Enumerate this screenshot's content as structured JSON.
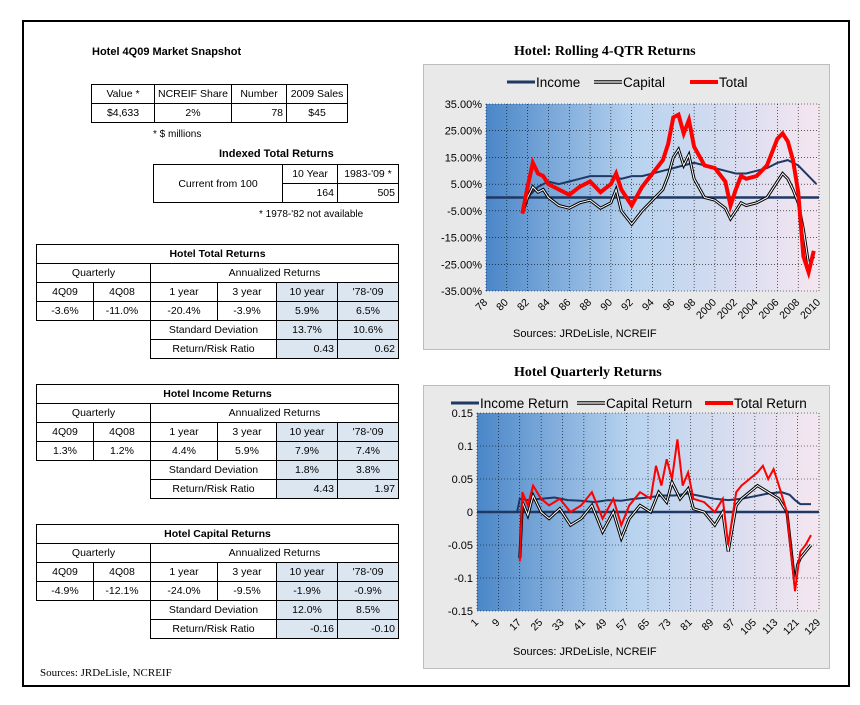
{
  "snapshot": {
    "title": "Hotel 4Q09 Market Snapshot",
    "headers": [
      "Value *",
      "NCREIF Share",
      "Number",
      "2009 Sales"
    ],
    "values": [
      "$4,633",
      "2%",
      "78",
      "$45"
    ],
    "note": "* $ millions"
  },
  "indexed": {
    "title": "Indexed Total Returns",
    "col_headers": [
      "10 Year",
      "1983-'09 *"
    ],
    "row_label": "Current from 100",
    "values": [
      "164",
      "505"
    ],
    "note": "* 1978-'82 not available"
  },
  "tables": [
    {
      "title": "Hotel Total Returns",
      "quarterly_label": "Quarterly",
      "annualized_label": "Annualized Returns",
      "headers": [
        "4Q09",
        "4Q08",
        "1 year",
        "3 year",
        "10 year",
        "'78-'09"
      ],
      "values": [
        "-3.6%",
        "-11.0%",
        "-20.4%",
        "-3.9%",
        "5.9%",
        "6.5%"
      ],
      "sd_label": "Standard Deviation",
      "sd_values": [
        "13.7%",
        "10.6%"
      ],
      "rr_label": "Return/Risk Ratio",
      "rr_values": [
        "0.43",
        "0.62"
      ]
    },
    {
      "title": "Hotel Income Returns",
      "quarterly_label": "Quarterly",
      "annualized_label": "Annualized Returns",
      "headers": [
        "4Q09",
        "4Q08",
        "1 year",
        "3 year",
        "10 year",
        "'78-'09"
      ],
      "values": [
        "1.3%",
        "1.2%",
        "4.4%",
        "5.9%",
        "7.9%",
        "7.4%"
      ],
      "sd_label": "Standard Deviation",
      "sd_values": [
        "1.8%",
        "3.8%"
      ],
      "rr_label": "Return/Risk Ratio",
      "rr_values": [
        "4.43",
        "1.97"
      ]
    },
    {
      "title": "Hotel Capital Returns",
      "quarterly_label": "Quarterly",
      "annualized_label": "Annualized Returns",
      "headers": [
        "4Q09",
        "4Q08",
        "1 year",
        "3 year",
        "10 year",
        "'78-'09"
      ],
      "values": [
        "-4.9%",
        "-12.1%",
        "-24.0%",
        "-9.5%",
        "-1.9%",
        "-0.9%"
      ],
      "sd_label": "Standard Deviation",
      "sd_values": [
        "12.0%",
        "8.5%"
      ],
      "rr_label": "Return/Risk Ratio",
      "rr_values": [
        "-0.16",
        "-0.10"
      ]
    }
  ],
  "footer_source": "Sources: JRDeLisle, NCREIF",
  "chart_data": [
    {
      "type": "line",
      "title": "Hotel:  Rolling 4-QTR Returns",
      "source": "Sources: JRDeLisle, NCREIF",
      "x_ticks": [
        "78",
        "80",
        "82",
        "84",
        "86",
        "88",
        "90",
        "92",
        "94",
        "96",
        "98",
        "2000",
        "2002",
        "2004",
        "2006",
        "2008",
        "2010"
      ],
      "x_range": [
        1978,
        2010
      ],
      "y_ticks": [
        "35.00%",
        "25.00%",
        "15.00%",
        "5.00%",
        "-5.00%",
        "-15.00%",
        "-25.00%",
        "-35.00%"
      ],
      "ylim": [
        -35,
        35
      ],
      "grid": true,
      "legend_position": "top",
      "series": [
        {
          "name": "Income",
          "color": "#1f3864",
          "x": [
            1978,
            1980,
            1982,
            1983,
            1984,
            1985,
            1986,
            1987,
            1988,
            1989,
            1990,
            1991,
            1992,
            1993,
            1994,
            1995,
            1996,
            1997,
            1998,
            1999,
            2000,
            2001,
            2002,
            2003,
            2004,
            2005,
            2006,
            2007,
            2008,
            2009,
            2009.75
          ],
          "y": [
            0,
            0,
            0,
            4,
            6,
            5,
            6,
            7,
            8,
            8,
            8,
            7,
            8,
            8,
            9,
            10,
            11,
            12,
            13,
            12,
            11,
            10,
            9,
            9,
            10,
            11,
            13,
            14,
            12,
            8,
            5
          ]
        },
        {
          "name": "Capital",
          "color": "#404040",
          "x": [
            1981.5,
            1982,
            1982.5,
            1983,
            1983.5,
            1984,
            1985,
            1986,
            1987,
            1988,
            1989,
            1990,
            1990.5,
            1991,
            1992,
            1993,
            1994,
            1995,
            1995.5,
            1996,
            1996.5,
            1997,
            1997.5,
            1998,
            1999,
            2000,
            2001,
            2001.5,
            2002,
            2002.5,
            2003,
            2004,
            2005,
            2006,
            2006.5,
            2007,
            2007.5,
            2008,
            2008.5,
            2009,
            2009.5
          ],
          "y": [
            -6,
            0,
            4,
            2,
            3,
            0,
            -3,
            -4,
            -2,
            -1,
            -4,
            -2,
            3,
            -5,
            -10,
            -5,
            -1,
            3,
            8,
            15,
            18,
            12,
            16,
            7,
            0,
            -1,
            -4,
            -8,
            -5,
            -2,
            -3,
            -2,
            0,
            6,
            9,
            7,
            3,
            -2,
            -12,
            -25,
            -22
          ]
        },
        {
          "name": "Total",
          "color": "#ff0000",
          "x": [
            1981.5,
            1982,
            1982.5,
            1983,
            1983.5,
            1984,
            1985,
            1986,
            1987,
            1988,
            1989,
            1990,
            1990.5,
            1991,
            1992,
            1993,
            1994,
            1995,
            1995.5,
            1996,
            1996.5,
            1997,
            1997.5,
            1998,
            1999,
            2000,
            2001,
            2001.5,
            2002,
            2002.5,
            2003,
            2004,
            2005,
            2006,
            2006.5,
            2007,
            2007.5,
            2008,
            2008.5,
            2009,
            2009.5
          ],
          "y": [
            -6,
            4,
            13,
            9,
            8,
            5,
            3,
            1,
            4,
            6,
            2,
            5,
            9,
            3,
            -3,
            4,
            9,
            14,
            20,
            30,
            31,
            24,
            29,
            19,
            12,
            11,
            6,
            -3,
            3,
            8,
            7,
            8,
            12,
            22,
            24,
            21,
            14,
            2,
            -22,
            -28,
            -20
          ]
        }
      ]
    },
    {
      "type": "line",
      "title": "Hotel Quarterly Returns",
      "source": "Sources: JRDeLisle, NCREIF",
      "x_ticks": [
        "1",
        "9",
        "17",
        "25",
        "33",
        "41",
        "49",
        "57",
        "65",
        "73",
        "81",
        "89",
        "97",
        "105",
        "113",
        "121",
        "129"
      ],
      "x_range": [
        1,
        129
      ],
      "y_ticks": [
        "0.15",
        "0.1",
        "0.05",
        "0",
        "-0.05",
        "-0.1",
        "-0.15"
      ],
      "ylim": [
        -0.15,
        0.15
      ],
      "grid": true,
      "legend_position": "top",
      "series": [
        {
          "name": "Income Return",
          "color": "#1f3864",
          "x": [
            1,
            16,
            17,
            20,
            25,
            30,
            35,
            40,
            45,
            50,
            55,
            60,
            65,
            70,
            75,
            80,
            85,
            90,
            95,
            100,
            105,
            110,
            115,
            118,
            120,
            122,
            124,
            126
          ],
          "y": [
            0,
            0,
            0.02,
            0.018,
            0.02,
            0.022,
            0.018,
            0.017,
            0.015,
            0.018,
            0.017,
            0.02,
            0.022,
            0.025,
            0.025,
            0.028,
            0.024,
            0.02,
            0.018,
            0.02,
            0.024,
            0.028,
            0.03,
            0.026,
            0.018,
            0.012,
            0.012,
            0.012
          ]
        },
        {
          "name": "Capital Return",
          "color": "#404040",
          "x": [
            17,
            18,
            20,
            22,
            25,
            28,
            32,
            36,
            40,
            44,
            48,
            52,
            55,
            58,
            62,
            66,
            69,
            72,
            74,
            77,
            80,
            82,
            86,
            90,
            93,
            95,
            98,
            100,
            103,
            106,
            110,
            114,
            117,
            120,
            121,
            122,
            124,
            126
          ],
          "y": [
            -0.07,
            0.015,
            -0.005,
            0.025,
            0.0,
            -0.01,
            0.005,
            -0.02,
            -0.01,
            0.01,
            -0.03,
            0.0,
            -0.04,
            -0.01,
            0.01,
            0.0,
            0.03,
            0.015,
            0.045,
            0.02,
            0.035,
            0.005,
            0.0,
            -0.02,
            0.0,
            -0.06,
            0.01,
            0.02,
            0.03,
            0.04,
            0.03,
            0.02,
            0.0,
            -0.11,
            -0.08,
            -0.07,
            -0.06,
            -0.05
          ]
        },
        {
          "name": "Total Return",
          "color": "#ff0000",
          "x": [
            17,
            18,
            20,
            22,
            25,
            28,
            32,
            36,
            40,
            44,
            48,
            52,
            55,
            58,
            62,
            66,
            68,
            70,
            72,
            74,
            76,
            78,
            80,
            82,
            86,
            90,
            93,
            95,
            98,
            100,
            103,
            106,
            108,
            110,
            112,
            114,
            117,
            120,
            121,
            122,
            124,
            126
          ],
          "y": [
            -0.075,
            0.03,
            0.01,
            0.04,
            0.02,
            0.01,
            0.02,
            0.0,
            0.01,
            0.03,
            -0.01,
            0.02,
            -0.02,
            0.01,
            0.03,
            0.02,
            0.07,
            0.04,
            0.08,
            0.05,
            0.11,
            0.04,
            0.06,
            0.02,
            0.015,
            0.0,
            0.02,
            -0.05,
            0.03,
            0.04,
            0.05,
            0.06,
            0.07,
            0.05,
            0.065,
            0.04,
            0.0,
            -0.12,
            -0.09,
            -0.06,
            -0.05,
            -0.035
          ]
        }
      ]
    }
  ]
}
